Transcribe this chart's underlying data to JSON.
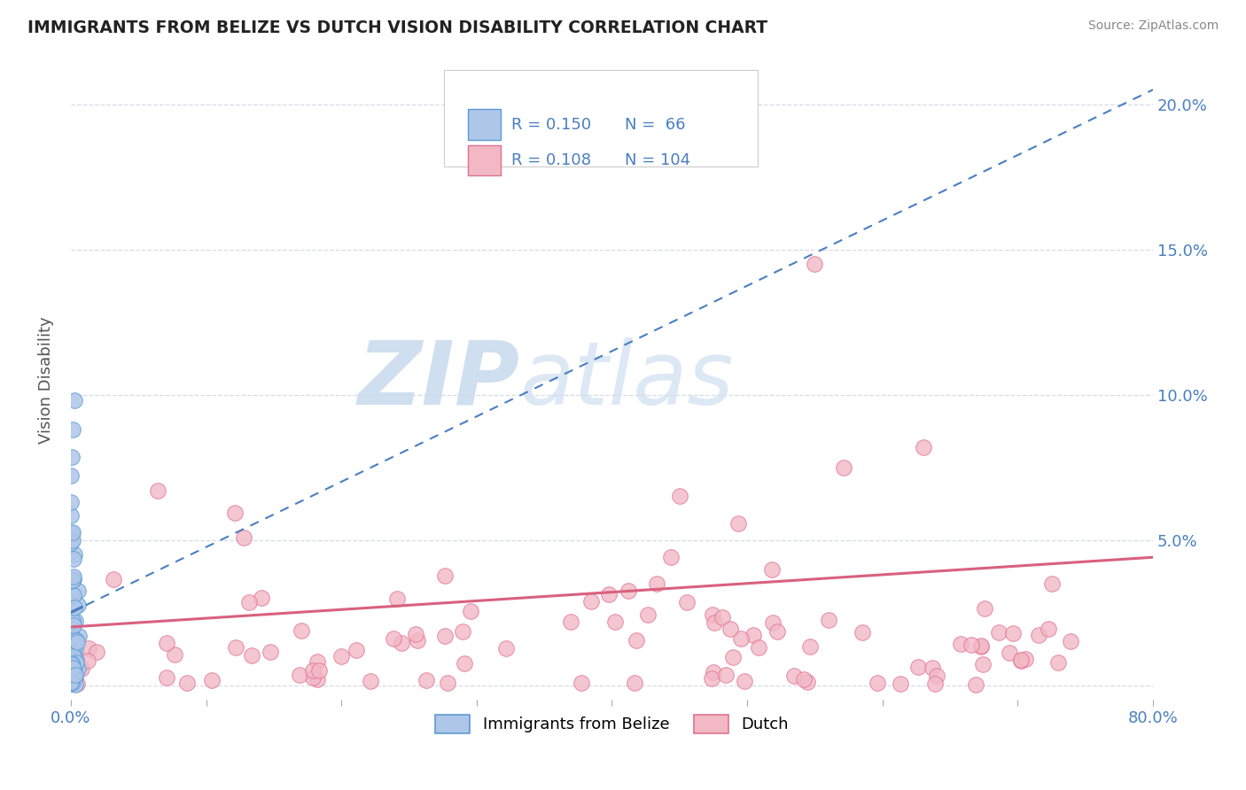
{
  "title": "IMMIGRANTS FROM BELIZE VS DUTCH VISION DISABILITY CORRELATION CHART",
  "source": "Source: ZipAtlas.com",
  "ylabel": "Vision Disability",
  "xlim": [
    0,
    0.8
  ],
  "ylim": [
    -0.005,
    0.215
  ],
  "xticks": [
    0.0,
    0.1,
    0.2,
    0.3,
    0.4,
    0.5,
    0.6,
    0.7,
    0.8
  ],
  "xticklabels": [
    "0.0%",
    "",
    "",
    "",
    "",
    "",
    "",
    "",
    "80.0%"
  ],
  "yticks": [
    0.0,
    0.05,
    0.1,
    0.15,
    0.2
  ],
  "yticklabels_right": [
    "",
    "5.0%",
    "10.0%",
    "15.0%",
    "20.0%"
  ],
  "blue_R": 0.15,
  "blue_N": 66,
  "pink_R": 0.108,
  "pink_N": 104,
  "blue_fill_color": "#aec6e8",
  "pink_fill_color": "#f2b8c6",
  "blue_edge_color": "#5b9bd5",
  "pink_edge_color": "#e07090",
  "blue_line_color": "#4a7fc0",
  "pink_line_color": "#d96080",
  "watermark_zip": "ZIP",
  "watermark_atlas": "atlas",
  "legend_blue_label": "Immigrants from Belize",
  "legend_pink_label": "Dutch",
  "grid_color": "#d5dce8",
  "title_color": "#222222",
  "source_color": "#888888",
  "ylabel_color": "#555555",
  "tick_color": "#4a7fc0"
}
